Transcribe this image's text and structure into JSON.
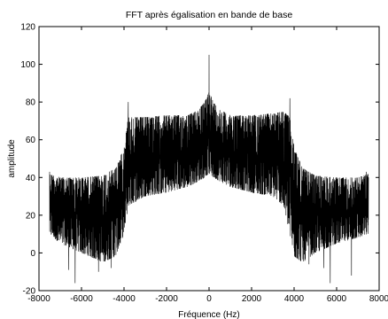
{
  "chart_data": {
    "type": "line",
    "title": "FFT après égalisation en bande de base",
    "xlabel": "Fréquence (Hz)",
    "ylabel": "amplitude",
    "xlim": [
      -8000,
      8000
    ],
    "ylim": [
      -20,
      120
    ],
    "xticks": [
      "-8000",
      "-6000",
      "-4000",
      "-2000",
      "0",
      "2000",
      "4000",
      "6000",
      "8000"
    ],
    "yticks": [
      "-20",
      "0",
      "20",
      "40",
      "60",
      "80",
      "100",
      "120"
    ],
    "grid": false,
    "legend": "none",
    "line_color": "#000000",
    "series": [
      {
        "x_start": -7500,
        "x_end": 7500,
        "envelope": {
          "x": [
            -7500,
            -7000,
            -6000,
            -5000,
            -4400,
            -4000,
            -3800,
            -3000,
            -2000,
            -1000,
            -500,
            -200,
            0,
            200,
            500,
            1000,
            2000,
            3000,
            3500,
            3800,
            4000,
            4400,
            5000,
            6000,
            7000,
            7500
          ],
          "max": [
            42,
            40,
            40,
            41,
            45,
            56,
            72,
            72,
            73,
            73,
            76,
            80,
            86,
            80,
            76,
            73,
            73,
            74,
            75,
            72,
            56,
            45,
            41,
            40,
            40,
            42
          ],
          "min": [
            10,
            5,
            0,
            -5,
            -2,
            10,
            25,
            30,
            32,
            35,
            38,
            40,
            42,
            40,
            38,
            35,
            32,
            30,
            25,
            10,
            -2,
            -5,
            0,
            5,
            8,
            10
          ]
        },
        "peaks": [
          {
            "x": 0,
            "y": 105
          },
          {
            "x": -3800,
            "y": 80
          },
          {
            "x": 3800,
            "y": 82
          },
          {
            "x": -7500,
            "y": 43
          },
          {
            "x": 7400,
            "y": 43
          }
        ],
        "dips": [
          {
            "x": -6300,
            "y": -16
          },
          {
            "x": 5700,
            "y": -16
          },
          {
            "x": -6600,
            "y": -9
          },
          {
            "x": 6700,
            "y": -12
          },
          {
            "x": -4600,
            "y": -8
          },
          {
            "x": 4700,
            "y": -6
          },
          {
            "x": -5200,
            "y": -10
          },
          {
            "x": 5400,
            "y": -8
          }
        ]
      }
    ]
  }
}
